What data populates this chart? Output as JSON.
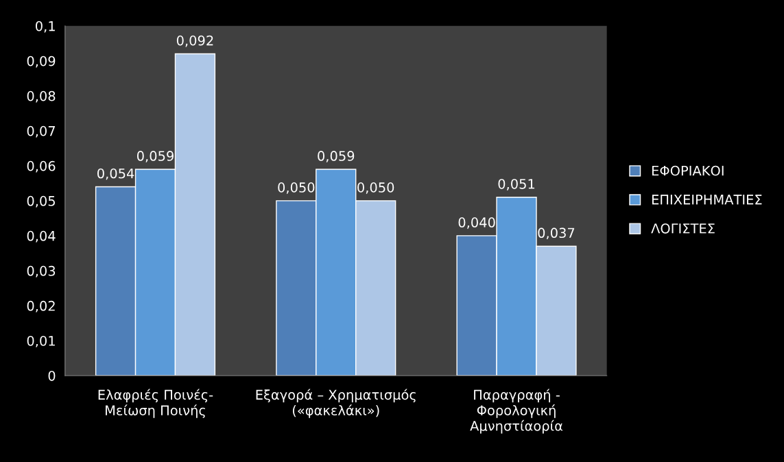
{
  "chart_data": {
    "type": "bar",
    "categories": [
      "Ελαφριές Ποινές-\nΜείωση Ποινής",
      "Εξαγορά – Χρηματισμός\n(«φακελάκι»)",
      "Παραγραφή -\nΦορολογική\nΑμνηστίαορία"
    ],
    "series": [
      {
        "name": "ΕΦΟΡΙΑΚΟΙ",
        "color": "#4f7fb8",
        "values": [
          0.054,
          0.05,
          0.04
        ],
        "value_labels": [
          "0,054",
          "0,050",
          "0,040"
        ]
      },
      {
        "name": "ΕΠΙΧΕΙΡΗΜΑΤΙΕΣ",
        "color": "#5a9ad8",
        "values": [
          0.059,
          0.059,
          0.051
        ],
        "value_labels": [
          "0,059",
          "0,059",
          "0,051"
        ]
      },
      {
        "name": "ΛΟΓΙΣΤΕΣ",
        "color": "#adc6e6",
        "values": [
          0.092,
          0.05,
          0.037
        ],
        "value_labels": [
          "0,092",
          "0,050",
          "0,037"
        ]
      }
    ],
    "ylim": [
      0,
      0.1
    ],
    "yticks": [
      0,
      {
        "value": 0.01,
        "label": "0,01"
      },
      {
        "value": 0.02,
        "label": "0,02"
      },
      {
        "value": 0.03,
        "label": "0,03"
      },
      {
        "value": 0.04,
        "label": "0,04"
      },
      {
        "value": 0.05,
        "label": "0,05"
      },
      {
        "value": 0.06,
        "label": "0,06"
      },
      {
        "value": 0.07,
        "label": "0,07"
      },
      {
        "value": 0.08,
        "label": "0,08"
      },
      {
        "value": 0.09,
        "label": "0,09"
      },
      {
        "value": 0.1,
        "label": "0,1"
      }
    ],
    "grid": false,
    "legend": "right"
  }
}
